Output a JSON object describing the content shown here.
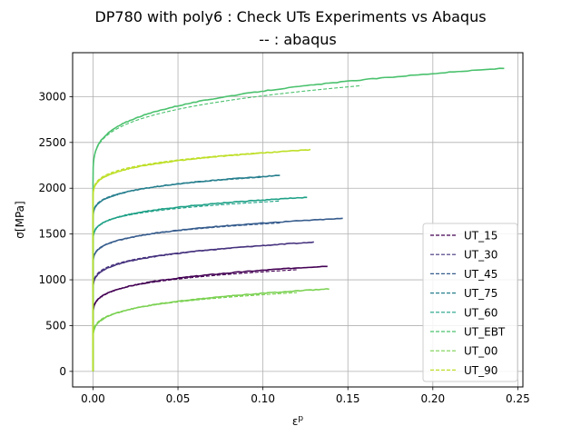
{
  "chart_data": {
    "type": "line",
    "title": "DP780 with poly6 : Check UTs Experiments vs Abaqus",
    "subtitle": "-- : abaqus",
    "xlabel": "ε^p",
    "ylabel": "σ[MPa]",
    "xlim": [
      -0.012,
      0.253
    ],
    "ylim": [
      -170,
      3480
    ],
    "x_ticks": [
      0.0,
      0.05,
      0.1,
      0.15,
      0.2,
      0.25
    ],
    "x_tick_labels": [
      "0.00",
      "0.05",
      "0.10",
      "0.15",
      "0.20",
      "0.25"
    ],
    "y_ticks": [
      0,
      500,
      1000,
      1500,
      2000,
      2500,
      3000
    ],
    "y_tick_labels": [
      "0",
      "500",
      "1000",
      "1500",
      "2000",
      "2500",
      "3000"
    ],
    "grid": true,
    "legend_position": "lower-right",
    "legend_entries": [
      "UT_15",
      "UT_30",
      "UT_45",
      "UT_75",
      "UT_60",
      "UT_EBT",
      "UT_00",
      "UT_90"
    ],
    "series": [
      {
        "name": "UT_15",
        "color": "#440154",
        "experiment": {
          "sigma_y": 560,
          "peak": 1150,
          "x_end": 0.138
        },
        "abaqus": {
          "sigma_y": 570,
          "peak": 1110,
          "x_end": 0.12
        }
      },
      {
        "name": "UT_30",
        "color": "#46327e",
        "experiment": {
          "sigma_y": 840,
          "peak": 1410,
          "x_end": 0.13
        },
        "abaqus": {
          "sigma_y": 850,
          "peak": 1380,
          "x_end": 0.105
        }
      },
      {
        "name": "UT_45",
        "color": "#365c8d",
        "experiment": {
          "sigma_y": 1120,
          "peak": 1670,
          "x_end": 0.147
        },
        "abaqus": {
          "sigma_y": 1130,
          "peak": 1620,
          "x_end": 0.11
        }
      },
      {
        "name": "UT_75",
        "color": "#277f8e",
        "experiment": {
          "sigma_y": 1620,
          "peak": 2140,
          "x_end": 0.11
        },
        "abaqus": {
          "sigma_y": 1630,
          "peak": 2120,
          "x_end": 0.1
        }
      },
      {
        "name": "UT_60",
        "color": "#1fa187",
        "experiment": {
          "sigma_y": 1380,
          "peak": 1900,
          "x_end": 0.126
        },
        "abaqus": {
          "sigma_y": 1390,
          "peak": 1860,
          "x_end": 0.11
        }
      },
      {
        "name": "UT_EBT",
        "color": "#4ac16d",
        "experiment": {
          "sigma_y": 2050,
          "peak": 3310,
          "x_end": 0.242
        },
        "abaqus": {
          "sigma_y": 2050,
          "peak": 3120,
          "x_end": 0.158
        }
      },
      {
        "name": "UT_00",
        "color": "#7ad151",
        "experiment": {
          "sigma_y": 300,
          "peak": 900,
          "x_end": 0.139
        },
        "abaqus": {
          "sigma_y": 320,
          "peak": 860,
          "x_end": 0.12
        }
      },
      {
        "name": "UT_90",
        "color": "#bddf26",
        "experiment": {
          "sigma_y": 1850,
          "peak": 2420,
          "x_end": 0.128
        },
        "abaqus": {
          "sigma_y": 1860,
          "peak": 2390,
          "x_end": 0.1
        }
      }
    ]
  }
}
